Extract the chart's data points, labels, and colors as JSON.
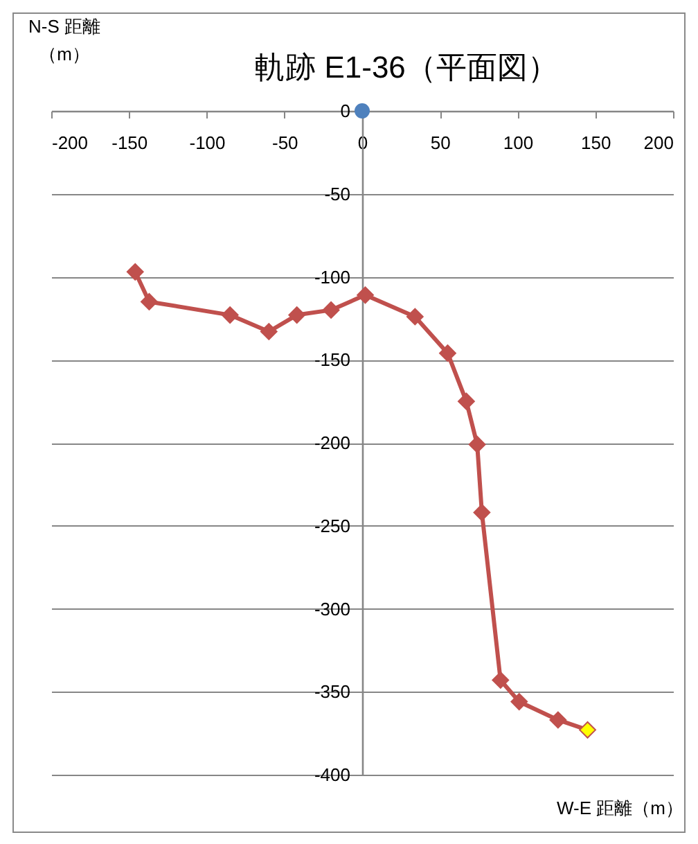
{
  "chart_data": {
    "type": "line",
    "title": "軌跡 E1-36（平面図）",
    "xlabel": "W-E 距離（m）",
    "ylabel": "N-S 距離（m）",
    "xlim": [
      -200,
      200
    ],
    "ylim": [
      -400,
      0
    ],
    "xticks": [
      -200,
      -150,
      -100,
      -50,
      0,
      50,
      100,
      150,
      200
    ],
    "yticks": [
      0,
      -50,
      -100,
      -150,
      -200,
      -250,
      -300,
      -350,
      -400
    ],
    "grid": "y",
    "series": [
      {
        "type": "scatter",
        "color": "#4f81bd",
        "marker": "circle",
        "x": [
          0
        ],
        "values": [
          0
        ]
      },
      {
        "color": "#c0504d",
        "marker": "diamond",
        "colors": [
          "#c0504d",
          "#c0504d",
          "#c0504d",
          "#c0504d",
          "#c0504d",
          "#c0504d",
          "#c0504d",
          "#c0504d",
          "#c0504d",
          "#c0504d",
          "#c0504d",
          "#c0504d",
          "#c0504d",
          "#c0504d",
          "#c0504d",
          "#ffff00"
        ],
        "x": [
          -146,
          -137,
          -85,
          -60,
          -42,
          -20,
          2,
          34,
          55,
          67,
          74,
          77,
          89,
          101,
          126,
          145
        ],
        "values": [
          -97,
          -115,
          -123,
          -133,
          -123,
          -120,
          -111,
          -124,
          -146,
          -175,
          -201,
          -242,
          -343,
          -356,
          -367,
          -373
        ]
      }
    ]
  }
}
